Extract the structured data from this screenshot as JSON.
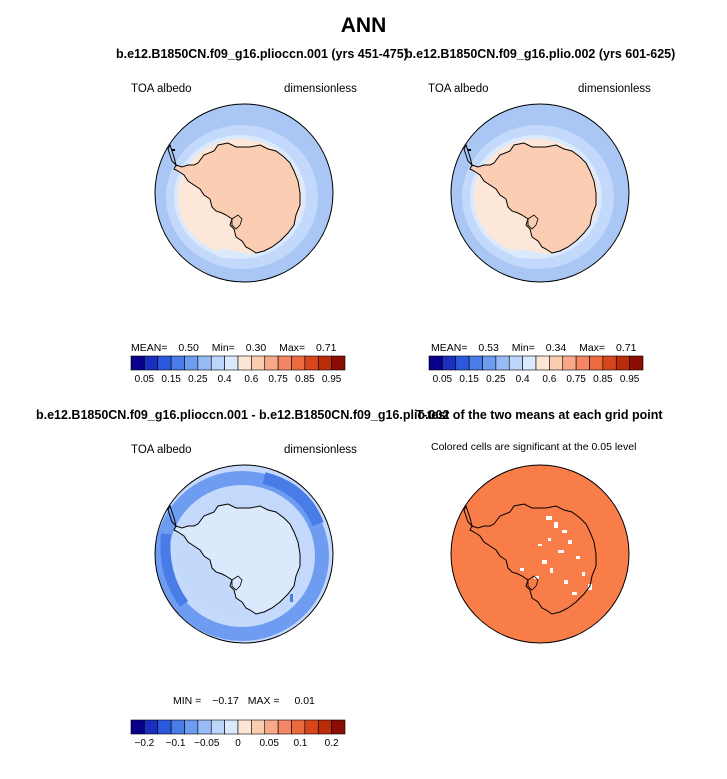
{
  "main_title": "ANN",
  "panels": [
    {
      "title": "b.e12.B1850CN.f09_g16.plioccn.001 (yrs 451-475)",
      "left_label": "TOA albedo",
      "right_label": "dimensionless",
      "stats": {
        "mean_label": "MEAN=",
        "mean": "0.50",
        "min_label": "Min=",
        "min": "0.30",
        "max_label": "Max=",
        "max": "0.71"
      }
    },
    {
      "title": "b.e12.B1850CN.f09_g16.plio.002 (yrs 601-625)",
      "left_label": "TOA albedo",
      "right_label": "dimensionless",
      "stats": {
        "mean_label": "MEAN=",
        "mean": "0.53",
        "min_label": "Min=",
        "min": "0.34",
        "max_label": "Max=",
        "max": "0.71"
      }
    },
    {
      "title": "b.e12.B1850CN.f09_g16.plioccn.001 - b.e12.B1850CN.f09_g16.plio.002",
      "left_label": "TOA albedo",
      "right_label": "dimensionless",
      "stats": {
        "min_label": "MIN =",
        "min": "−0.17",
        "max_label": "MAX =",
        "max": "0.01"
      }
    },
    {
      "title": "T-test of the two means at each grid point",
      "left_label": "Colored cells are significant at the 0.05 level"
    }
  ],
  "colorbar_abs": {
    "labels": [
      "0.05",
      "0.15",
      "0.25",
      "0.4",
      "0.6",
      "0.75",
      "0.85",
      "0.95"
    ],
    "colors": [
      "#08008a",
      "#1a2fc0",
      "#2b59dd",
      "#4a7ce8",
      "#6e9cf0",
      "#97bbf5",
      "#bdd5fb",
      "#dae9fd",
      "#fde6d6",
      "#fbcdb0",
      "#f8a98a",
      "#f48565",
      "#ec6a3f",
      "#d8461e",
      "#bb2c0a",
      "#8c0d03"
    ]
  },
  "colorbar_diff": {
    "labels": [
      "−0.2",
      "−0.1",
      "−0.05",
      "0",
      "0.05",
      "0.1",
      "0.2"
    ],
    "colors": [
      "#08008a",
      "#1a2fc0",
      "#2b59dd",
      "#4a7ce8",
      "#6e9cf0",
      "#97bbf5",
      "#bdd5fb",
      "#dae9fd",
      "#fde6d6",
      "#fbcdb0",
      "#f8a98a",
      "#f48565",
      "#ec6a3f",
      "#d8461e",
      "#bb2c0a",
      "#8c0d03"
    ]
  },
  "map_colors": {
    "ocean_outer": "#a9c6f4",
    "ocean_mid": "#c3d9fb",
    "ocean_inner": "#dbe9fd",
    "sea_ice": "#fde7d8",
    "land": "#fbceb3",
    "diff_background": "#c4d9fb",
    "diff_band": "#6e9cf0",
    "diff_band_strong": "#4a7ce8",
    "diff_land": "#dbe9fd",
    "ttest_fill": "#f87d48"
  }
}
